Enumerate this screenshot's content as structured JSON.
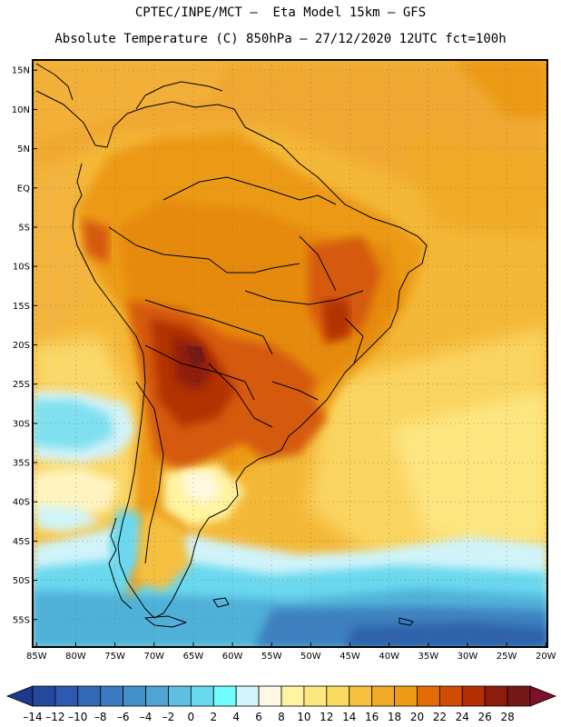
{
  "title": {
    "line1": "CPTEC/INPE/MCT –  Eta Model 15km – GFS",
    "line2": "Absolute Temperature (C) 850hPa – 27/12/2020 12UTC fct=100h"
  },
  "map": {
    "lat_labels": [
      "15N",
      "10N",
      "5N",
      "EQ",
      "5S",
      "10S",
      "15S",
      "20S",
      "25S",
      "30S",
      "35S",
      "40S",
      "45S",
      "50S",
      "55S"
    ],
    "lat_values": [
      15,
      10,
      5,
      0,
      -5,
      -10,
      -15,
      -20,
      -25,
      -30,
      -35,
      -40,
      -45,
      -50,
      -55
    ],
    "lon_labels": [
      "85W",
      "80W",
      "75W",
      "70W",
      "65W",
      "60W",
      "55W",
      "50W",
      "45W",
      "40W",
      "35W",
      "30W",
      "25W",
      "20W"
    ],
    "lon_values": [
      -85,
      -80,
      -75,
      -70,
      -65,
      -60,
      -55,
      -50,
      -45,
      -40,
      -35,
      -30,
      -25,
      -20
    ],
    "extent": {
      "lon_min": -85.5,
      "lon_max": -19.8,
      "lat_min": -58.5,
      "lat_max": 16.3
    }
  },
  "colorbar": {
    "tick_labels": [
      "-14",
      "-12",
      "-10",
      "-8",
      "-6",
      "-4",
      "-2",
      "0",
      "2",
      "4",
      "6",
      "8",
      "10",
      "12",
      "14",
      "16",
      "18",
      "20",
      "22",
      "24",
      "26",
      "28"
    ],
    "colors": [
      "#1c3a8c",
      "#234a9e",
      "#2b5aae",
      "#3469b7",
      "#3c7bc2",
      "#4490c8",
      "#50a4d2",
      "#5ec0e0",
      "#6ad8ee",
      "#6ffcfc",
      "#d0f4fa",
      "#fff8e2",
      "#fff4a0",
      "#fde880",
      "#fadc60",
      "#f5c040",
      "#f0aa28",
      "#ec9a18",
      "#e36c08",
      "#cf4d04",
      "#b23004",
      "#8e1c0c",
      "#741818",
      "#80102a"
    ]
  }
}
